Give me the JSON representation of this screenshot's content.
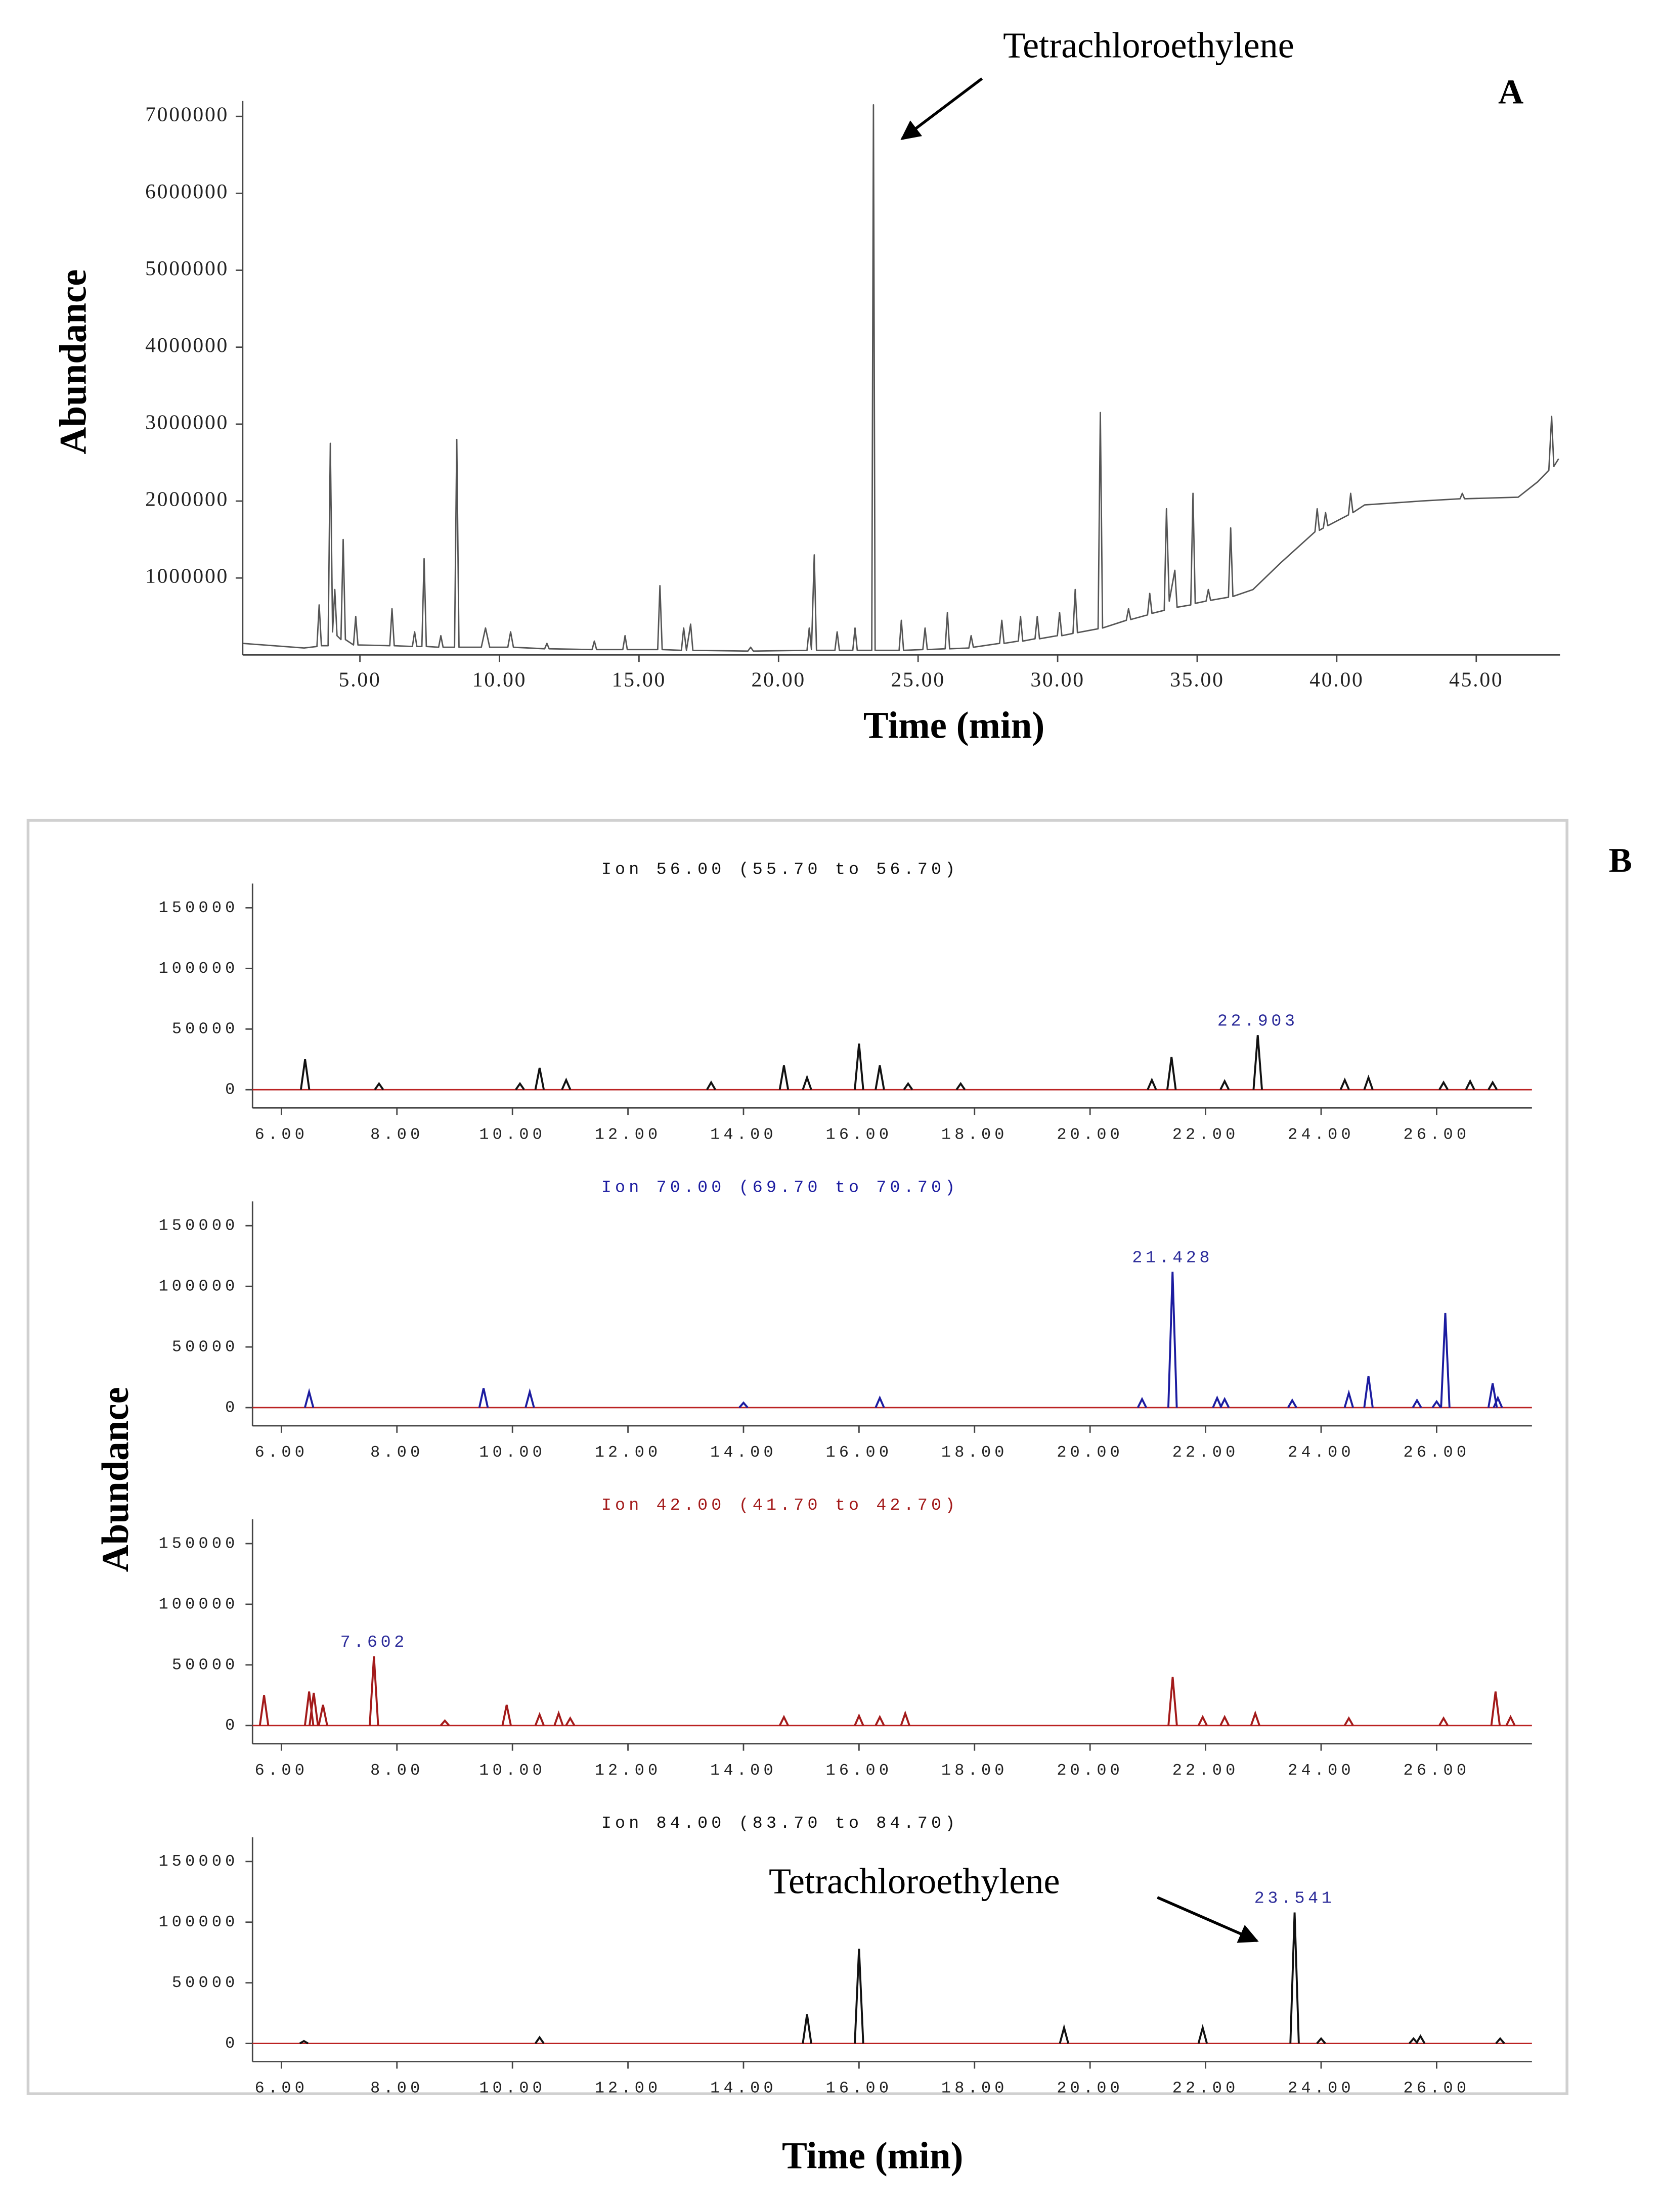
{
  "chart_data": [
    {
      "type": "line",
      "panel_label": "A",
      "xlabel": "Time (min)",
      "ylabel": "Abundance",
      "annotation": "Tetrachloroethylene",
      "color": "#555555",
      "xlim": [
        0.8,
        48
      ],
      "ylim": [
        0,
        7200000
      ],
      "xticks": [
        {
          "value": 5,
          "label": "5.00"
        },
        {
          "value": 10,
          "label": "10.00"
        },
        {
          "value": 15,
          "label": "15.00"
        },
        {
          "value": 20,
          "label": "20.00"
        },
        {
          "value": 25,
          "label": "25.00"
        },
        {
          "value": 30,
          "label": "30.00"
        },
        {
          "value": 35,
          "label": "35.00"
        },
        {
          "value": 40,
          "label": "40.00"
        },
        {
          "value": 45,
          "label": "45.00"
        }
      ],
      "yticks": [
        1000000,
        2000000,
        3000000,
        4000000,
        5000000,
        6000000,
        7000000
      ],
      "x": [
        0.8,
        3.0,
        3.46,
        3.54,
        3.62,
        3.86,
        3.94,
        4.02,
        4.1,
        4.18,
        4.32,
        4.4,
        4.48,
        4.77,
        4.85,
        4.93,
        6.07,
        6.15,
        6.23,
        6.88,
        6.96,
        7.04,
        7.22,
        7.3,
        7.38,
        7.82,
        7.9,
        7.98,
        8.39,
        8.47,
        8.55,
        9.35,
        9.5,
        9.65,
        10.3,
        10.4,
        10.5,
        11.62,
        11.7,
        11.78,
        13.32,
        13.4,
        13.48,
        14.42,
        14.5,
        14.58,
        15.67,
        15.75,
        15.83,
        16.52,
        16.6,
        16.7,
        16.85,
        16.93,
        18.9,
        19.0,
        19.1,
        21.02,
        21.1,
        21.18,
        21.28,
        21.36,
        22.02,
        22.1,
        22.18,
        22.66,
        22.74,
        22.82,
        23.34,
        23.4,
        23.46,
        24.32,
        24.4,
        24.48,
        25.17,
        25.25,
        25.33,
        25.97,
        26.05,
        26.13,
        26.82,
        26.9,
        26.98,
        27.92,
        28.0,
        28.08,
        28.59,
        28.67,
        28.75,
        29.19,
        29.27,
        29.35,
        29.99,
        30.07,
        30.15,
        30.55,
        30.63,
        30.71,
        31.45,
        31.53,
        31.61,
        32.46,
        32.54,
        32.62,
        33.22,
        33.3,
        33.38,
        33.82,
        33.9,
        34.0,
        34.2,
        34.28,
        34.77,
        34.85,
        34.93,
        35.32,
        35.4,
        35.48,
        36.12,
        36.2,
        36.28,
        37.0,
        38.0,
        39.22,
        39.3,
        39.38,
        39.52,
        39.6,
        39.68,
        40.42,
        40.5,
        40.58,
        41.0,
        43.0,
        44.42,
        44.5,
        44.58,
        46.5,
        47.2,
        47.6,
        47.7,
        47.78,
        47.95
      ],
      "values": [
        150000,
        90000,
        110000,
        650000,
        120000,
        120000,
        2750000,
        300000,
        850000,
        250000,
        200000,
        1500000,
        200000,
        130000,
        500000,
        130000,
        120000,
        600000,
        120000,
        110000,
        300000,
        110000,
        110000,
        1250000,
        110000,
        100000,
        250000,
        100000,
        100000,
        2800000,
        100000,
        100000,
        350000,
        100000,
        100000,
        300000,
        100000,
        80000,
        150000,
        80000,
        70000,
        180000,
        70000,
        70000,
        250000,
        70000,
        70000,
        900000,
        70000,
        60000,
        350000,
        60000,
        400000,
        60000,
        50000,
        100000,
        50000,
        60000,
        350000,
        70000,
        1300000,
        60000,
        60000,
        300000,
        60000,
        60000,
        350000,
        60000,
        60000,
        7150000,
        60000,
        60000,
        450000,
        60000,
        70000,
        350000,
        70000,
        80000,
        550000,
        80000,
        90000,
        250000,
        100000,
        150000,
        450000,
        150000,
        180000,
        500000,
        180000,
        210000,
        500000,
        210000,
        250000,
        550000,
        250000,
        280000,
        850000,
        290000,
        340000,
        3150000,
        350000,
        450000,
        600000,
        460000,
        520000,
        800000,
        540000,
        580000,
        1900000,
        700000,
        1100000,
        620000,
        650000,
        2100000,
        670000,
        700000,
        850000,
        710000,
        750000,
        1650000,
        760000,
        850000,
        1200000,
        1600000,
        1900000,
        1620000,
        1650000,
        1850000,
        1680000,
        1820000,
        2100000,
        1850000,
        1950000,
        2000000,
        2030000,
        2100000,
        2030000,
        2050000,
        2250000,
        2400000,
        3100000,
        2450000,
        2550000
      ]
    },
    {
      "type": "peaks",
      "title": "Ion 56.00 (55.70 to 56.70)",
      "color": "#111111",
      "xlim": [
        5.5,
        27.65
      ],
      "ylim": [
        -15000,
        170000
      ],
      "xticks": [
        {
          "value": 6,
          "label": "6.00"
        },
        {
          "value": 8,
          "label": "8.00"
        },
        {
          "value": 10,
          "label": "10.00"
        },
        {
          "value": 12,
          "label": "12.00"
        },
        {
          "value": 14,
          "label": "14.00"
        },
        {
          "value": 16,
          "label": "16.00"
        },
        {
          "value": 18,
          "label": "18.00"
        },
        {
          "value": 20,
          "label": "20.00"
        },
        {
          "value": 22,
          "label": "22.00"
        },
        {
          "value": 24,
          "label": "24.00"
        },
        {
          "value": 26,
          "label": "26.00"
        }
      ],
      "yticks": [
        0,
        50000,
        100000,
        150000
      ],
      "x": [
        6.41,
        7.69,
        10.13,
        10.47,
        10.93,
        13.44,
        14.7,
        15.1,
        16.0,
        16.36,
        16.85,
        17.76,
        21.07,
        21.41,
        22.33,
        22.903,
        24.41,
        24.82,
        26.12,
        26.58,
        26.97
      ],
      "values": [
        25000,
        5000,
        5000,
        18000,
        8000,
        6000,
        20000,
        10000,
        38000,
        20000,
        5000,
        5000,
        8000,
        27000,
        7000,
        45000,
        8000,
        10000,
        6000,
        7000,
        6000
      ],
      "peak_labels": [
        {
          "label": "22.903",
          "x": 22.903
        }
      ]
    },
    {
      "type": "peaks",
      "title": "Ion 70.00 (69.70 to 70.70)",
      "color": "#1c1ca0",
      "xlim": [
        5.5,
        27.65
      ],
      "ylim": [
        -15000,
        170000
      ],
      "xticks": [
        {
          "value": 6,
          "label": "6.00"
        },
        {
          "value": 8,
          "label": "8.00"
        },
        {
          "value": 10,
          "label": "10.00"
        },
        {
          "value": 12,
          "label": "12.00"
        },
        {
          "value": 14,
          "label": "14.00"
        },
        {
          "value": 16,
          "label": "16.00"
        },
        {
          "value": 18,
          "label": "18.00"
        },
        {
          "value": 20,
          "label": "20.00"
        },
        {
          "value": 22,
          "label": "22.00"
        },
        {
          "value": 24,
          "label": "24.00"
        },
        {
          "value": 26,
          "label": "26.00"
        }
      ],
      "yticks": [
        0,
        50000,
        100000,
        150000
      ],
      "x": [
        6.48,
        9.5,
        10.3,
        14.0,
        16.36,
        20.9,
        21.428,
        22.2,
        22.33,
        23.5,
        24.48,
        24.82,
        25.66,
        26.0,
        26.15,
        26.97,
        27.06
      ],
      "values": [
        13000,
        16000,
        13000,
        4000,
        8000,
        7000,
        112000,
        8000,
        7000,
        6000,
        12000,
        26000,
        6000,
        5000,
        78000,
        20000,
        8000
      ],
      "peak_labels": [
        {
          "label": "21.428",
          "x": 21.428
        }
      ]
    },
    {
      "type": "peaks",
      "title": "Ion 42.00 (41.70 to 42.70)",
      "color": "#a31a1a",
      "xlim": [
        5.5,
        27.65
      ],
      "ylim": [
        -15000,
        170000
      ],
      "xticks": [
        {
          "value": 6,
          "label": "6.00"
        },
        {
          "value": 8,
          "label": "8.00"
        },
        {
          "value": 10,
          "label": "10.00"
        },
        {
          "value": 12,
          "label": "12.00"
        },
        {
          "value": 14,
          "label": "14.00"
        },
        {
          "value": 16,
          "label": "16.00"
        },
        {
          "value": 18,
          "label": "18.00"
        },
        {
          "value": 20,
          "label": "20.00"
        },
        {
          "value": 22,
          "label": "22.00"
        },
        {
          "value": 24,
          "label": "24.00"
        },
        {
          "value": 26,
          "label": "26.00"
        }
      ],
      "yticks": [
        0,
        50000,
        100000,
        150000
      ],
      "x": [
        5.7,
        6.48,
        6.56,
        6.72,
        7.602,
        8.83,
        9.9,
        10.47,
        10.8,
        11.0,
        14.7,
        16.0,
        16.36,
        16.8,
        21.43,
        21.95,
        22.33,
        22.86,
        24.48,
        26.12,
        27.02,
        27.28
      ],
      "values": [
        25000,
        28000,
        27000,
        17000,
        57000,
        4000,
        17000,
        9000,
        10000,
        6000,
        7000,
        8000,
        7000,
        10000,
        40000,
        7000,
        7000,
        10000,
        6000,
        6000,
        28000,
        7000
      ],
      "peak_labels": [
        {
          "label": "7.602",
          "x": 7.602
        }
      ]
    },
    {
      "type": "peaks",
      "title": "Ion 84.00 (83.70 to 84.70)",
      "color": "#111111",
      "annotation": "Tetrachloroethylene",
      "xlim": [
        5.5,
        27.65
      ],
      "ylim": [
        -15000,
        170000
      ],
      "xticks": [
        {
          "value": 6,
          "label": "6.00"
        },
        {
          "value": 8,
          "label": "8.00"
        },
        {
          "value": 10,
          "label": "10.00"
        },
        {
          "value": 12,
          "label": "12.00"
        },
        {
          "value": 14,
          "label": "14.00"
        },
        {
          "value": 16,
          "label": "16.00"
        },
        {
          "value": 18,
          "label": "18.00"
        },
        {
          "value": 20,
          "label": "20.00"
        },
        {
          "value": 22,
          "label": "22.00"
        },
        {
          "value": 24,
          "label": "24.00"
        },
        {
          "value": 26,
          "label": "26.00"
        }
      ],
      "yticks": [
        0,
        50000,
        100000,
        150000
      ],
      "x": [
        6.39,
        10.47,
        15.1,
        16.0,
        19.55,
        21.95,
        23.541,
        24.0,
        25.6,
        25.72,
        27.1
      ],
      "values": [
        2000,
        5000,
        24000,
        78000,
        13000,
        13000,
        108000,
        4000,
        4000,
        6000,
        4000
      ],
      "peak_labels": [
        {
          "label": "23.541",
          "x": 23.541
        }
      ]
    }
  ],
  "panel_b": {
    "panel_label": "B",
    "ylabel": "Abundance",
    "xlabel": "Time (min)"
  }
}
